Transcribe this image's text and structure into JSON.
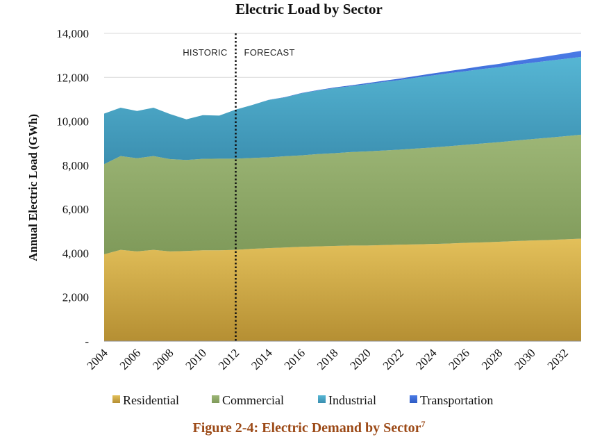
{
  "chart_data": {
    "type": "area",
    "stacked": true,
    "title": "Electric Load by Sector",
    "xlabel": "",
    "ylabel": "Annual Electric Load (GWh)",
    "ylim": [
      0,
      14000
    ],
    "yticks": [
      0,
      2000,
      4000,
      6000,
      8000,
      10000,
      12000,
      14000
    ],
    "ytick_labels": [
      "-",
      "2,000",
      "4,000",
      "6,000",
      "8,000",
      "10,000",
      "12,000",
      "14,000"
    ],
    "x": [
      2004,
      2005,
      2006,
      2007,
      2008,
      2009,
      2010,
      2011,
      2012,
      2013,
      2014,
      2015,
      2016,
      2017,
      2018,
      2019,
      2020,
      2021,
      2022,
      2023,
      2024,
      2025,
      2026,
      2027,
      2028,
      2029,
      2030,
      2031,
      2032,
      2033
    ],
    "xtick_labels": [
      "2004",
      "2006",
      "2008",
      "2010",
      "2012",
      "2014",
      "2016",
      "2018",
      "2020",
      "2022",
      "2024",
      "2026",
      "2028",
      "2030",
      "2032"
    ],
    "xtick_values": [
      2004,
      2006,
      2008,
      2010,
      2012,
      2014,
      2016,
      2018,
      2020,
      2022,
      2024,
      2026,
      2028,
      2030,
      2032
    ],
    "series": [
      {
        "name": "Residential",
        "color": "#d6b44e",
        "values": [
          3950,
          4150,
          4080,
          4150,
          4080,
          4100,
          4130,
          4130,
          4150,
          4200,
          4230,
          4260,
          4290,
          4310,
          4330,
          4350,
          4350,
          4370,
          4390,
          4400,
          4420,
          4440,
          4470,
          4490,
          4520,
          4550,
          4580,
          4600,
          4630,
          4660
        ]
      },
      {
        "name": "Commercial",
        "color": "#94ad6e",
        "values": [
          4100,
          4270,
          4240,
          4270,
          4200,
          4140,
          4160,
          4170,
          4150,
          4130,
          4130,
          4150,
          4160,
          4200,
          4220,
          4250,
          4280,
          4300,
          4320,
          4360,
          4390,
          4430,
          4460,
          4500,
          4530,
          4570,
          4610,
          4650,
          4690,
          4730
        ]
      },
      {
        "name": "Industrial",
        "color": "#4ba6c4",
        "values": [
          2300,
          2200,
          2150,
          2200,
          2050,
          1850,
          1990,
          1960,
          2230,
          2410,
          2610,
          2680,
          2820,
          2890,
          2960,
          3000,
          3060,
          3120,
          3170,
          3230,
          3280,
          3320,
          3350,
          3390,
          3410,
          3450,
          3470,
          3500,
          3520,
          3540
        ]
      },
      {
        "name": "Transportation",
        "color": "#3f6fd8",
        "values": [
          0,
          0,
          0,
          0,
          0,
          0,
          0,
          0,
          0,
          0,
          5,
          10,
          15,
          20,
          28,
          35,
          45,
          55,
          65,
          75,
          88,
          100,
          115,
          130,
          150,
          170,
          190,
          215,
          245,
          275
        ]
      }
    ],
    "annotations": {
      "divider_at": 2012,
      "historic_label": "HISTORIC",
      "forecast_label": "FORECAST"
    },
    "legend_position": "bottom"
  },
  "caption": {
    "text": "Figure 2-4: Electric Demand by Sector",
    "footnote": "7"
  }
}
